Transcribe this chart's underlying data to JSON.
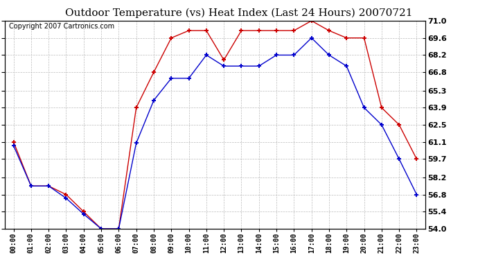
{
  "title": "Outdoor Temperature (vs) Heat Index (Last 24 Hours) 20070721",
  "copyright": "Copyright 2007 Cartronics.com",
  "hours": [
    "00:00",
    "01:00",
    "02:00",
    "03:00",
    "04:00",
    "05:00",
    "06:00",
    "07:00",
    "08:00",
    "09:00",
    "10:00",
    "11:00",
    "12:00",
    "13:00",
    "14:00",
    "15:00",
    "16:00",
    "17:00",
    "18:00",
    "19:00",
    "20:00",
    "21:00",
    "22:00",
    "23:00"
  ],
  "temp": [
    60.8,
    57.5,
    57.5,
    56.5,
    55.2,
    54.0,
    54.0,
    61.0,
    64.5,
    66.3,
    66.3,
    68.2,
    67.3,
    67.3,
    67.3,
    68.2,
    68.2,
    69.6,
    68.2,
    67.3,
    63.9,
    62.5,
    59.7,
    56.8
  ],
  "heat_index": [
    61.1,
    57.5,
    57.5,
    56.8,
    55.4,
    54.0,
    54.0,
    63.9,
    66.8,
    69.6,
    70.2,
    70.2,
    67.8,
    70.2,
    70.2,
    70.2,
    70.2,
    71.0,
    70.2,
    69.6,
    69.6,
    63.9,
    62.5,
    59.7
  ],
  "ylim": [
    54.0,
    71.0
  ],
  "yticks": [
    54.0,
    55.4,
    56.8,
    58.2,
    59.7,
    61.1,
    62.5,
    63.9,
    65.3,
    66.8,
    68.2,
    69.6,
    71.0
  ],
  "temp_color": "#0000cc",
  "heat_color": "#cc0000",
  "bg_color": "#ffffff",
  "grid_color": "#bbbbbb",
  "title_fontsize": 11,
  "copyright_fontsize": 7
}
